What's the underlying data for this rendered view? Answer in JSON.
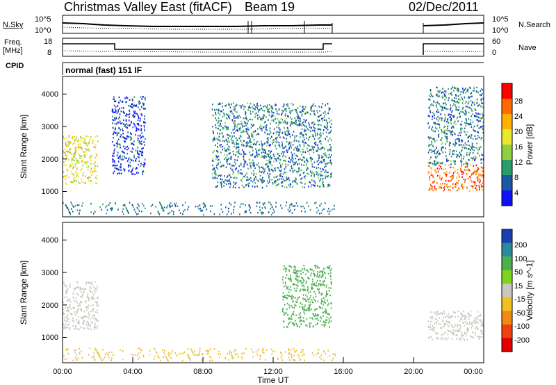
{
  "header": {
    "station": "Christmas Valley East (fitACF)",
    "beam": "Beam 19",
    "date": "02/Dec/2011"
  },
  "nsky_panel": {
    "left_label": "N.Sky",
    "left_ticks": [
      "10^5",
      "10^0"
    ],
    "right_label": "N.Search",
    "right_ticks": [
      "10^5",
      "10^0"
    ]
  },
  "freq_panel": {
    "left_label_1": "Freq.",
    "left_label_2": "[MHz]",
    "left_ticks": [
      "18",
      "8"
    ],
    "right_label": "Nave",
    "right_ticks": [
      "60",
      "0"
    ]
  },
  "cpid": {
    "label": "CPID",
    "value": "normal (fast) 151 IF"
  },
  "power_panel": {
    "y_label": "Slant Range [km]",
    "y_ticks": [
      "4000",
      "3000",
      "2000",
      "1000"
    ],
    "cbar_label": "Power [dB]",
    "cbar_ticks": [
      "28",
      "24",
      "20",
      "16",
      "12",
      "8",
      "4"
    ],
    "cbar_colors": [
      "#ff0000",
      "#ff6a00",
      "#ffb000",
      "#e8e830",
      "#8fd040",
      "#2a9d6a",
      "#1a5aa0",
      "#1010ff"
    ]
  },
  "velocity_panel": {
    "y_label": "Slant Range [km]",
    "y_ticks": [
      "4000",
      "3000",
      "2000",
      "1000"
    ],
    "cbar_label": "Velocity [m s^-1]",
    "cbar_ticks": [
      "200",
      "100",
      "50",
      "15",
      "-15",
      "-50",
      "-100",
      "-200"
    ],
    "cbar_colors": [
      "#1a3fb0",
      "#2a8a9a",
      "#4caf50",
      "#7ed321",
      "#c8c8c0",
      "#f0c020",
      "#f08a10",
      "#f04010",
      "#e00000"
    ]
  },
  "x_axis": {
    "label": "Time UT",
    "ticks": [
      "00:00",
      "04:00",
      "08:00",
      "12:00",
      "16:00",
      "20:00",
      "00:00"
    ]
  },
  "chart_data": {
    "type": "heatmap",
    "title": "Christmas Valley East (fitACF) Beam 19 02/Dec/2011",
    "xlabel": "Time UT",
    "ylabel": "Slant Range [km]",
    "xlim": [
      0,
      24
    ],
    "ylim": [
      180,
      4500
    ],
    "data_gap_hours": [
      15.5,
      20.8
    ],
    "power_regions": [
      {
        "t_start": 0.0,
        "t_end": 2.0,
        "r_start": 1200,
        "r_end": 2700,
        "power_db": 20
      },
      {
        "t_start": 2.8,
        "t_end": 4.7,
        "r_start": 1500,
        "r_end": 3900,
        "power_db": 6
      },
      {
        "t_start": 8.5,
        "t_end": 15.3,
        "r_start": 1100,
        "r_end": 3700,
        "power_db": 10
      },
      {
        "t_start": 20.8,
        "t_end": 24.0,
        "r_start": 1000,
        "r_end": 1800,
        "power_db": 28
      },
      {
        "t_start": 20.8,
        "t_end": 24.0,
        "r_start": 1800,
        "r_end": 4200,
        "power_db": 10
      }
    ],
    "velocity_regions": [
      {
        "t_start": 0.0,
        "t_end": 2.0,
        "r_start": 1200,
        "r_end": 2700,
        "velocity": 0
      },
      {
        "t_start": 12.5,
        "t_end": 15.3,
        "r_start": 1300,
        "r_end": 3200,
        "velocity": 40
      },
      {
        "t_start": 20.8,
        "t_end": 24.0,
        "r_start": 900,
        "r_end": 1800,
        "velocity": 0
      }
    ]
  }
}
